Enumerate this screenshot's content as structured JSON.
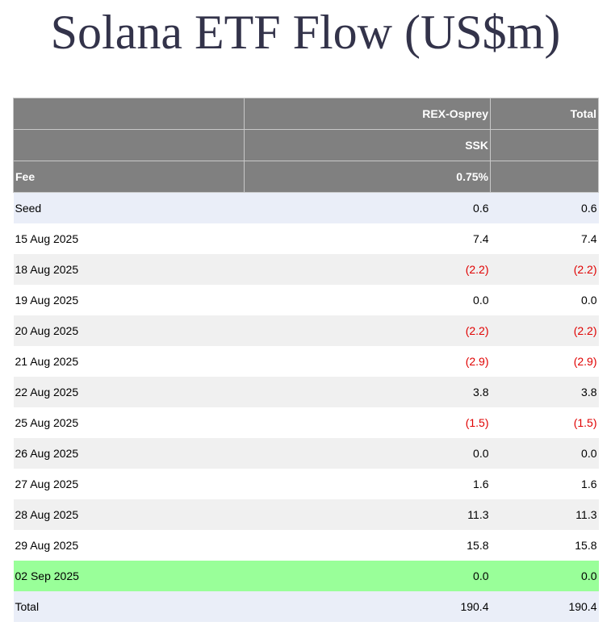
{
  "title": "Solana ETF Flow (US$m)",
  "table": {
    "header": {
      "row1": [
        "",
        "REX-Osprey",
        "Total"
      ],
      "row2": [
        "",
        "SSK",
        ""
      ],
      "row3": [
        "Fee",
        "0.75%",
        ""
      ]
    },
    "seed": {
      "date": "Seed",
      "rex_osprey": "0.6",
      "total": "0.6"
    },
    "rows": [
      {
        "date": "15 Aug 2025",
        "rex_osprey": "7.4",
        "total": "7.4"
      },
      {
        "date": "18 Aug 2025",
        "rex_osprey": "(2.2)",
        "total": "(2.2)"
      },
      {
        "date": "19 Aug 2025",
        "rex_osprey": "0.0",
        "total": "0.0"
      },
      {
        "date": "20 Aug 2025",
        "rex_osprey": "(2.2)",
        "total": "(2.2)"
      },
      {
        "date": "21 Aug 2025",
        "rex_osprey": "(2.9)",
        "total": "(2.9)"
      },
      {
        "date": "22 Aug 2025",
        "rex_osprey": "3.8",
        "total": "3.8"
      },
      {
        "date": "25 Aug 2025",
        "rex_osprey": "(1.5)",
        "total": "(1.5)"
      },
      {
        "date": "26 Aug 2025",
        "rex_osprey": "0.0",
        "total": "0.0"
      },
      {
        "date": "27 Aug 2025",
        "rex_osprey": "1.6",
        "total": "1.6"
      },
      {
        "date": "28 Aug 2025",
        "rex_osprey": "11.3",
        "total": "11.3"
      },
      {
        "date": "29 Aug 2025",
        "rex_osprey": "15.8",
        "total": "15.8"
      },
      {
        "date": "02 Sep 2025",
        "rex_osprey": "0.0",
        "total": "0.0"
      }
    ],
    "total": {
      "date": "Total",
      "rex_osprey": "190.4",
      "total": "190.4"
    }
  },
  "colors": {
    "header_bg": "#808080",
    "seed_total_bg": "#eaeef8",
    "stripe_bg": "#f0f0f0",
    "latest_bg": "#99ff99",
    "negative_text": "#e00000",
    "title_text": "#33334a"
  }
}
